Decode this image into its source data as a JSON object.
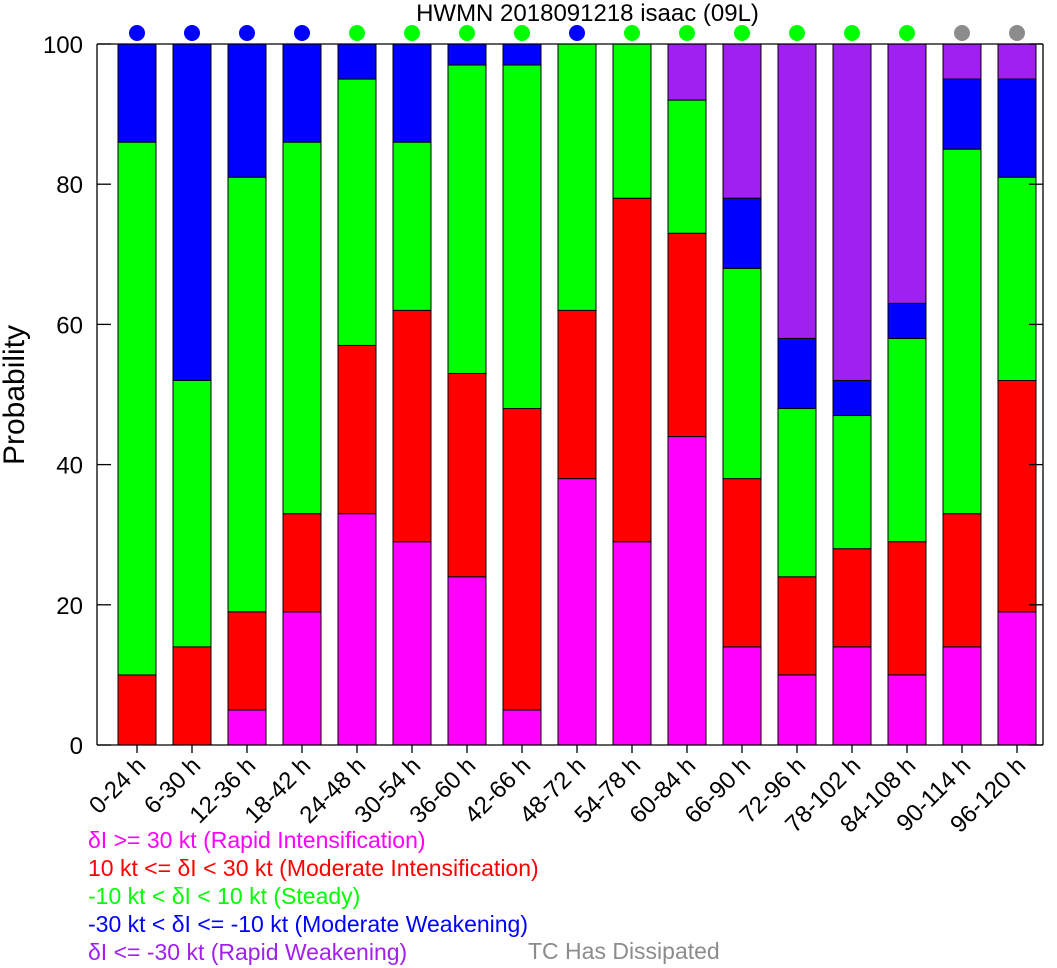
{
  "chart_data": {
    "type": "bar",
    "stacked": true,
    "title": "HWMN 2018091218 isaac (09L)",
    "ylabel": "Probability",
    "xlabel": "",
    "ylim": [
      0,
      100
    ],
    "yticks": [
      "0",
      "20",
      "40",
      "60",
      "80",
      "100"
    ],
    "grid": false,
    "categories": [
      "0-24 h",
      "6-30 h",
      "12-36 h",
      "18-42 h",
      "24-48 h",
      "30-54 h",
      "36-60 h",
      "42-66 h",
      "48-72 h",
      "54-78 h",
      "60-84 h",
      "66-90 h",
      "72-96 h",
      "78-102 h",
      "84-108 h",
      "90-114 h",
      "96-120 h"
    ],
    "series": [
      {
        "name": "δI >= 30 kt (Rapid Intensification)",
        "color": "#ff00ff",
        "values": [
          0,
          0,
          5,
          19,
          33,
          29,
          24,
          5,
          38,
          29,
          44,
          14,
          10,
          14,
          10,
          14,
          19
        ]
      },
      {
        "name": "10 kt <= δI < 30 kt (Moderate Intensification)",
        "color": "#ff0000",
        "values": [
          10,
          14,
          14,
          14,
          24,
          33,
          29,
          43,
          24,
          49,
          29,
          24,
          14,
          14,
          19,
          19,
          33
        ]
      },
      {
        "name": "-10 kt < δI < 10 kt (Steady)",
        "color": "#00ff00",
        "values": [
          76,
          38,
          62,
          53,
          38,
          24,
          44,
          49,
          38,
          22,
          19,
          30,
          24,
          19,
          29,
          52,
          29
        ]
      },
      {
        "name": "-30 kt < δI <= -10 kt (Moderate Weakening)",
        "color": "#0000ff",
        "values": [
          14,
          48,
          19,
          14,
          5,
          14,
          3,
          3,
          0,
          0,
          0,
          10,
          10,
          5,
          5,
          10,
          14
        ]
      },
      {
        "name": "δI <= -30 kt (Rapid Weakening)",
        "color": "#a020f0",
        "values": [
          0,
          0,
          0,
          0,
          0,
          0,
          0,
          0,
          0,
          0,
          8,
          22,
          42,
          48,
          37,
          5,
          5
        ]
      }
    ],
    "dissipated_label": "TC Has Dissipated",
    "dissipated_color": "#8c8c8c",
    "top_markers": [
      "#0000ff",
      "#0000ff",
      "#0000ff",
      "#0000ff",
      "#00ff00",
      "#00ff00",
      "#00ff00",
      "#00ff00",
      "#0000ff",
      "#00ff00",
      "#00ff00",
      "#00ff00",
      "#00ff00",
      "#00ff00",
      "#00ff00",
      "#8c8c8c",
      "#8c8c8c"
    ]
  }
}
